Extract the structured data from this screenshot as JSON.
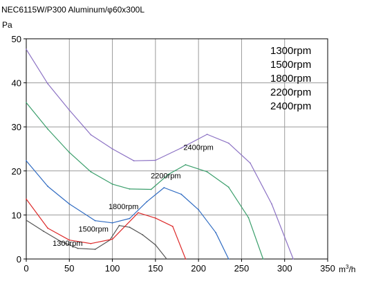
{
  "chart_data": {
    "type": "line",
    "title": "NEC6115W/P300 Aluminum/φ60x300L",
    "ylabel": "Pa",
    "xlabel_base": "m",
    "xlabel_sup": "3",
    "xlabel_tail": "/h",
    "xlim": [
      0,
      350
    ],
    "ylim": [
      0,
      50
    ],
    "xticks": [
      0,
      50,
      100,
      150,
      200,
      250,
      300,
      350
    ],
    "yticks": [
      0,
      10,
      20,
      30,
      40,
      50
    ],
    "grid": true,
    "legend_placement": "top-right",
    "legend": [
      "1300rpm",
      "1500rpm",
      "1800rpm",
      "2200rpm",
      "2400rpm"
    ],
    "series": [
      {
        "name": "1300rpm",
        "color": "#555555",
        "label_at": [
          48,
          3.0
        ],
        "x": [
          0,
          20,
          40,
          60,
          80,
          97,
          108,
          120,
          135,
          150,
          163
        ],
        "y": [
          8.8,
          6.3,
          4.0,
          2.4,
          2.2,
          4.3,
          7.6,
          7.2,
          5.5,
          3.2,
          0
        ]
      },
      {
        "name": "1500rpm",
        "color": "#dd2a2a",
        "label_at": [
          78,
          6.2
        ],
        "x": [
          0,
          25,
          50,
          75,
          100,
          130,
          150,
          170,
          185
        ],
        "y": [
          13.6,
          7.0,
          4.3,
          3.5,
          4.5,
          10.5,
          9.3,
          7.4,
          0
        ]
      },
      {
        "name": "1800rpm",
        "color": "#2f6bc2",
        "label_at": [
          113,
          11.3
        ],
        "x": [
          0,
          25,
          50,
          80,
          100,
          120,
          140,
          160,
          180,
          200,
          220,
          235
        ],
        "y": [
          22.3,
          16.5,
          12.5,
          8.7,
          8.2,
          9.2,
          13.0,
          16.2,
          14.7,
          11.2,
          6.0,
          0
        ]
      },
      {
        "name": "2200rpm",
        "color": "#3a9e6b",
        "label_at": [
          162,
          18.3
        ],
        "x": [
          0,
          25,
          50,
          75,
          100,
          120,
          145,
          165,
          185,
          210,
          235,
          258,
          275
        ],
        "y": [
          35.5,
          29.5,
          24.2,
          19.8,
          17.0,
          15.9,
          15.8,
          19.2,
          21.4,
          19.8,
          16.3,
          9.4,
          0
        ]
      },
      {
        "name": "2400rpm",
        "color": "#8c72c4",
        "label_at": [
          200,
          24.8
        ],
        "x": [
          0,
          25,
          50,
          75,
          100,
          125,
          150,
          180,
          210,
          235,
          260,
          285,
          310
        ],
        "y": [
          47.6,
          39.8,
          33.8,
          28.2,
          25.0,
          22.3,
          22.4,
          25.2,
          28.3,
          26.3,
          21.8,
          12.5,
          0
        ]
      }
    ]
  }
}
